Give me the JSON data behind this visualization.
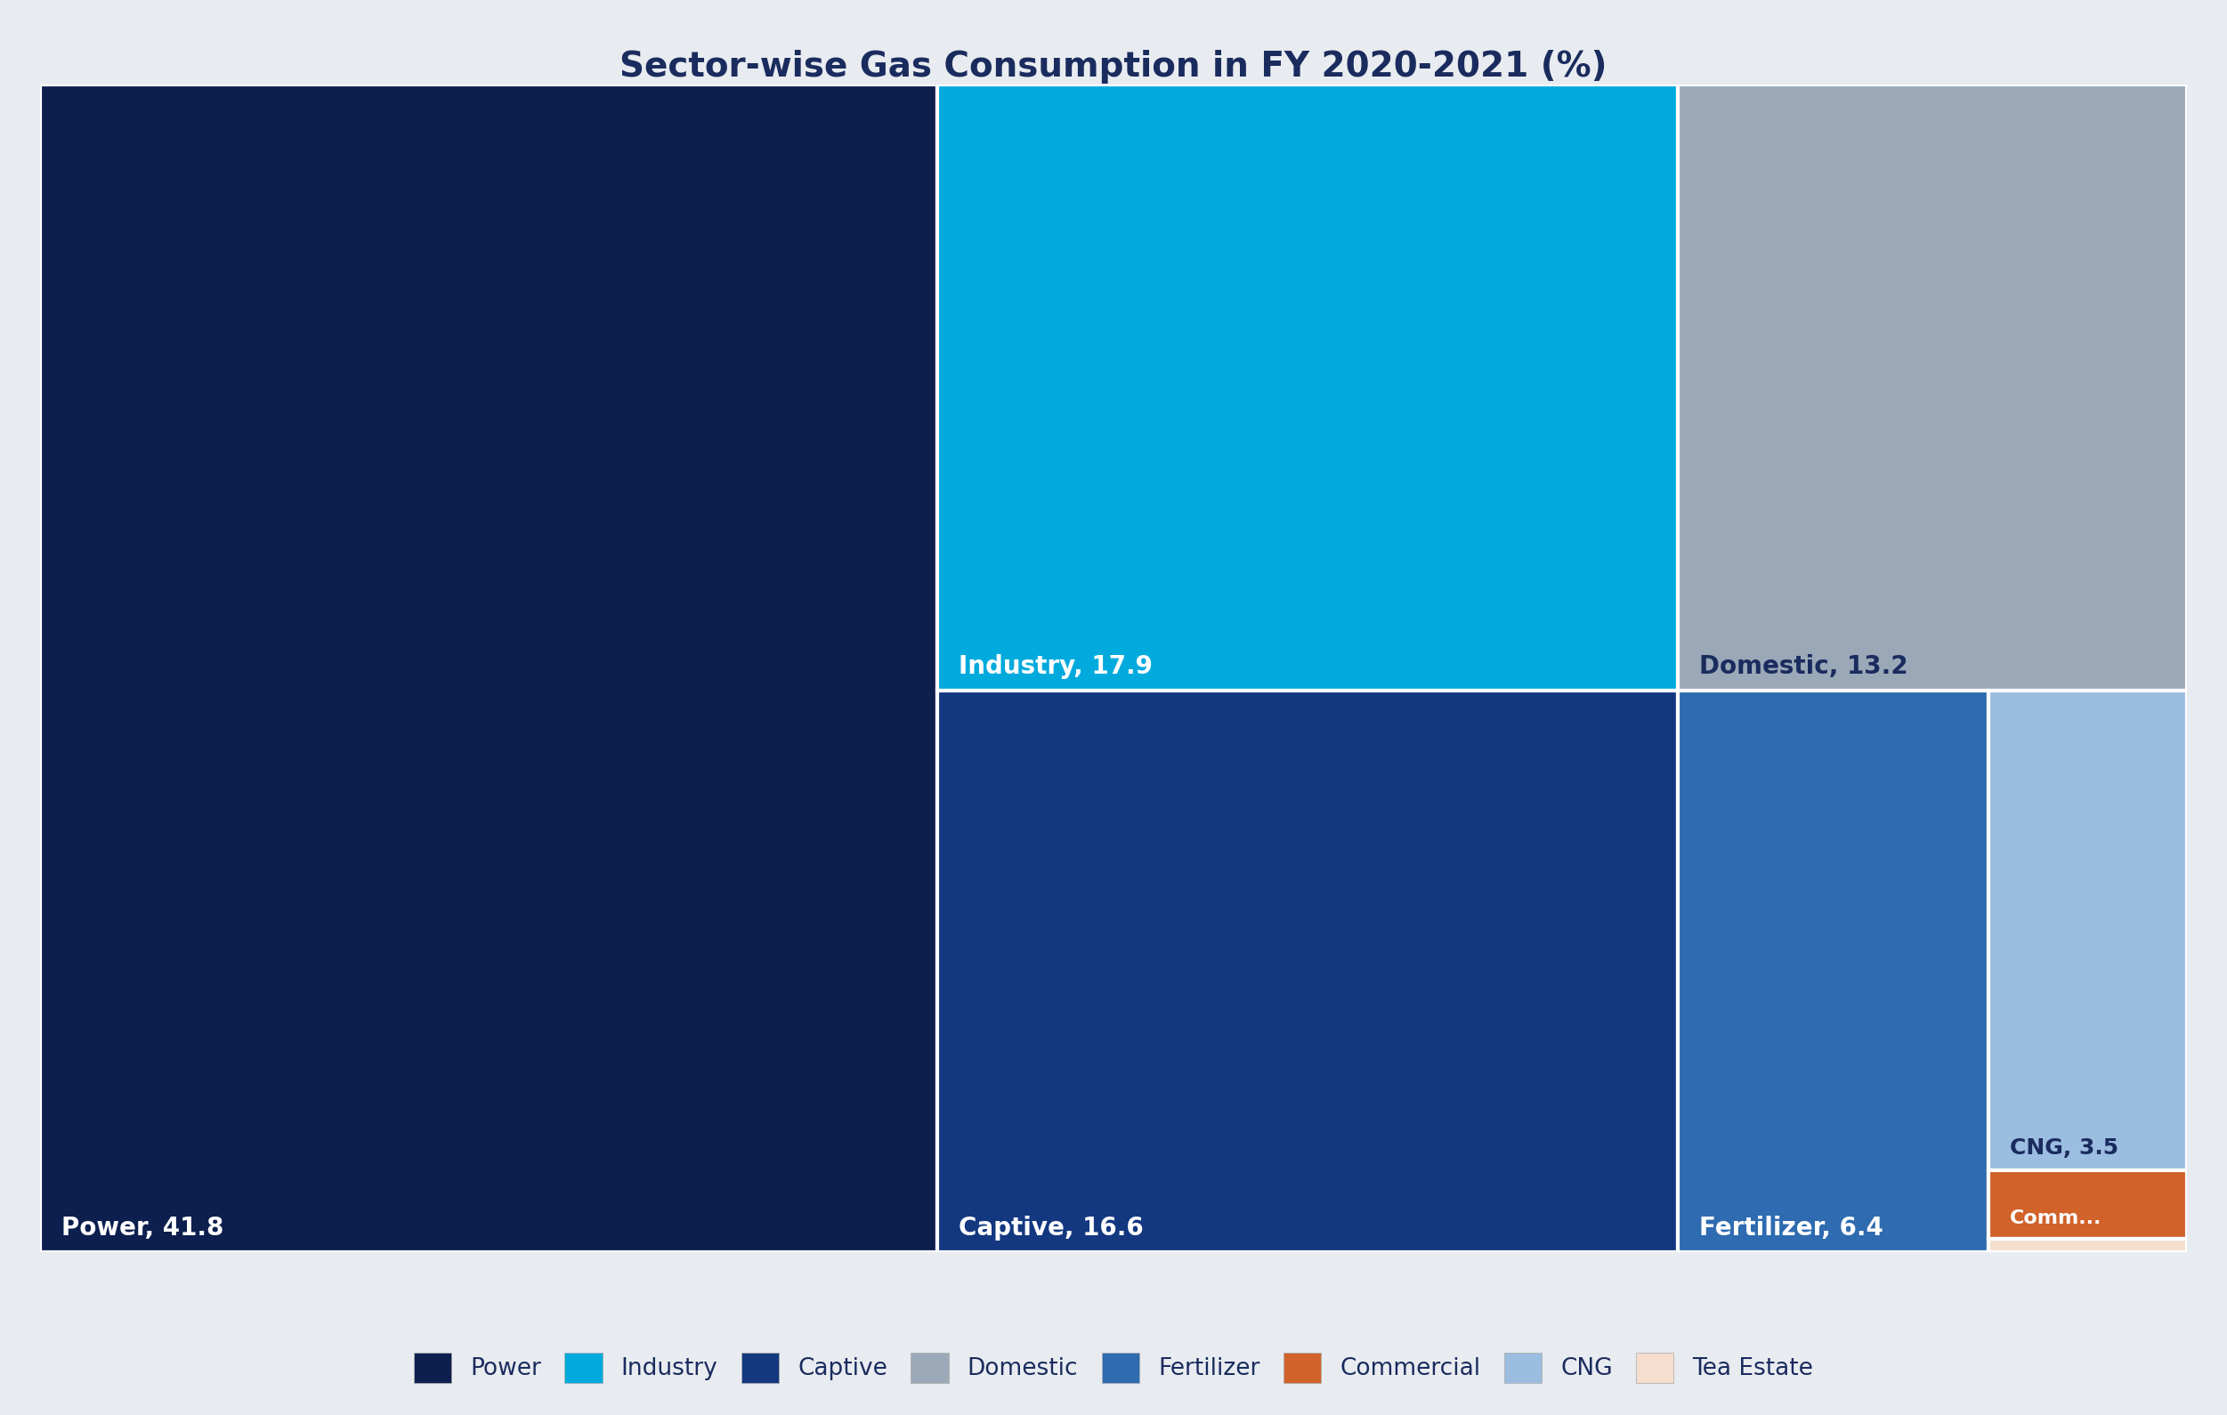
{
  "title": "Sector-wise Gas Consumption in FY 2020-2021 (%)",
  "title_fontsize": 28,
  "title_color": "#1a2b5e",
  "title_fontweight": "bold",
  "background_color": "#e8ecf0",
  "segments": [
    {
      "label": "Power",
      "value": 41.8,
      "color": "#0d1f4e",
      "text_color": "#ffffff"
    },
    {
      "label": "Industry",
      "value": 17.9,
      "color": "#00aadd",
      "text_color": "#ffffff"
    },
    {
      "label": "Domestic",
      "value": 13.2,
      "color": "#9aa8b8",
      "text_color": "#1a2b5e"
    },
    {
      "label": "Captive",
      "value": 16.6,
      "color": "#143880",
      "text_color": "#ffffff"
    },
    {
      "label": "Fertilizer",
      "value": 6.4,
      "color": "#2e6bb0",
      "text_color": "#ffffff"
    },
    {
      "label": "CNG",
      "value": 3.5,
      "color": "#9bbde0",
      "text_color": "#1a2b5e"
    },
    {
      "label": "Comm...",
      "value": 0.5,
      "color": "#d0622a",
      "text_color": "#ffffff"
    },
    {
      "label": "Tea Estate",
      "value": 0.1,
      "color": "#f5dece",
      "text_color": "#888888"
    }
  ],
  "legend_entries": [
    {
      "label": "Power",
      "color": "#0d1f4e"
    },
    {
      "label": "Industry",
      "color": "#00aadd"
    },
    {
      "label": "Captive",
      "color": "#143880"
    },
    {
      "label": "Domestic",
      "color": "#9aa8b8"
    },
    {
      "label": "Fertilizer",
      "color": "#2e6bb0"
    },
    {
      "label": "Commercial",
      "color": "#d0622a"
    },
    {
      "label": "CNG",
      "color": "#9bbde0"
    },
    {
      "label": "Tea Estate",
      "color": "#f5dece"
    }
  ],
  "label_fontsize": 20,
  "legend_fontsize": 19,
  "border_lw": 3
}
